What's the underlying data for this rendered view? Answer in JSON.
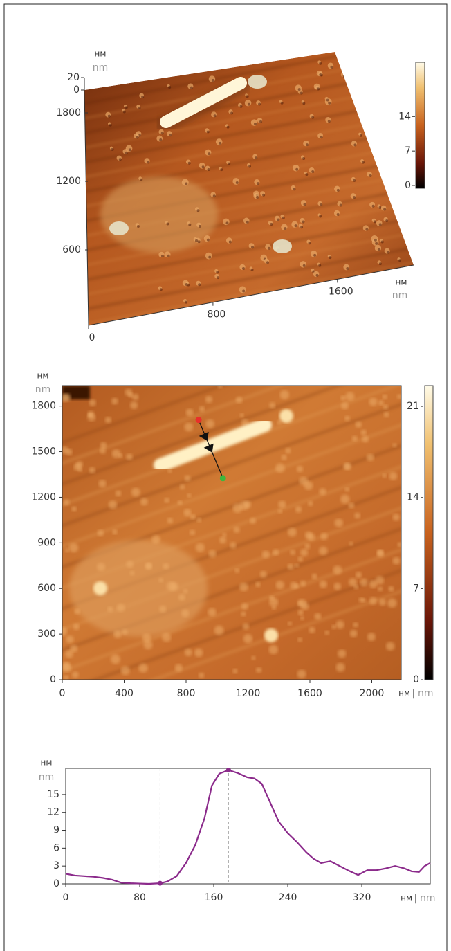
{
  "chart_data": [
    {
      "type": "surface3d",
      "z_label": "нм",
      "z_label_alt": "nm",
      "zlim": [
        0,
        20
      ],
      "zticks": [
        0,
        20
      ],
      "ylim": [
        0,
        2000
      ],
      "yticks": [
        600,
        1200,
        1800
      ],
      "xlim": [
        0,
        2090
      ],
      "xticks": [
        0,
        800,
        1600
      ],
      "x_label": "нм",
      "x_label_alt": "nm",
      "colorbar": {
        "lim": [
          0,
          25
        ],
        "ticks": [
          0,
          7,
          14
        ]
      }
    },
    {
      "type": "heatmap",
      "y_label": "нм",
      "y_label_alt": "nm",
      "xlim": [
        0,
        2190
      ],
      "xticks": [
        0,
        400,
        800,
        1200,
        1600,
        2000
      ],
      "ylim": [
        0,
        1935
      ],
      "yticks": [
        0,
        300,
        600,
        900,
        1200,
        1500,
        1800
      ],
      "x_label": "нм",
      "x_label_sep": "|",
      "x_label_alt": "nm",
      "colorbar": {
        "lim": [
          0,
          22.6
        ],
        "ticks": [
          0,
          7,
          14,
          21
        ]
      },
      "profile": {
        "start": {
          "x": 881,
          "y": 1709,
          "color": "#e8302a"
        },
        "end": {
          "x": 1038,
          "y": 1326,
          "color": "#3cb83c"
        }
      }
    },
    {
      "type": "line",
      "y_label": "нм",
      "y_label_alt": "nm",
      "x_label": "нм",
      "x_label_sep": "|",
      "x_label_alt": "nm",
      "xlim": [
        0,
        394
      ],
      "xticks": [
        0,
        80,
        160,
        240,
        320
      ],
      "ylim": [
        0,
        19.4
      ],
      "yticks": [
        0,
        3,
        6,
        9,
        12,
        15
      ],
      "color": "#8b2a8b",
      "x": [
        0,
        10,
        20,
        30,
        40,
        50,
        60,
        70,
        80,
        90,
        102,
        110,
        120,
        130,
        140,
        150,
        158,
        166,
        176,
        186,
        196,
        204,
        212,
        220,
        230,
        240,
        250,
        260,
        268,
        276,
        286,
        296,
        306,
        316,
        326,
        336,
        346,
        356,
        366,
        374,
        382,
        388,
        394
      ],
      "values": [
        1.7,
        1.4,
        1.3,
        1.2,
        1.0,
        0.7,
        0.2,
        0.1,
        0.05,
        0.0,
        0.1,
        0.4,
        1.3,
        3.5,
        6.5,
        11,
        16.5,
        18.5,
        19.1,
        18.6,
        17.9,
        17.7,
        16.8,
        14,
        10.5,
        8.5,
        7,
        5.3,
        4.2,
        3.5,
        3.8,
        3.0,
        2.2,
        1.5,
        2.3,
        2.3,
        2.6,
        3.0,
        2.6,
        2.1,
        2.0,
        3.0,
        3.5
      ],
      "markers": [
        {
          "x": 102,
          "y": 0.1
        },
        {
          "x": 176,
          "y": 19.1
        }
      ]
    }
  ]
}
